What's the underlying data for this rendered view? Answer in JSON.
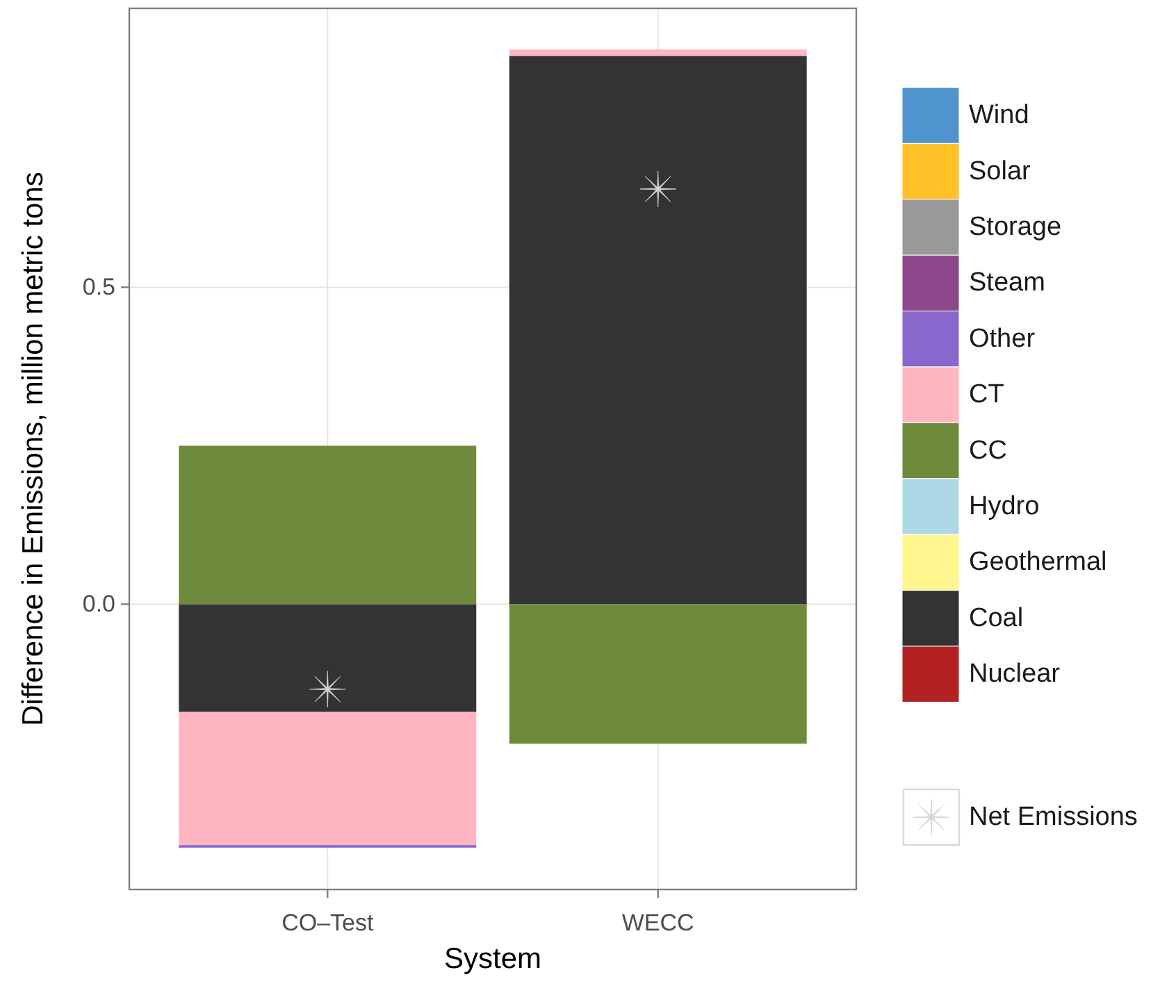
{
  "chart_data": {
    "type": "bar",
    "stacked": true,
    "xlabel": "System",
    "ylabel": "Difference in Emissions, million metric tons",
    "categories": [
      "CO–Test",
      "WECC"
    ],
    "ylim": [
      -0.45,
      0.94
    ],
    "yticks": [
      {
        "value": 0,
        "label": "0.0"
      },
      0.5
    ],
    "grid": true,
    "legend": "right",
    "series": [
      {
        "name": "Nuclear",
        "color": "#b22222",
        "values": [
          null,
          null
        ]
      },
      {
        "name": "Coal",
        "color": "#333333",
        "values": [
          -0.17,
          0.865
        ]
      },
      {
        "name": "Geothermal",
        "color": "#fff68f",
        "values": [
          null,
          null
        ]
      },
      {
        "name": "Hydro",
        "color": "#add8e6",
        "values": [
          null,
          null
        ]
      },
      {
        "name": "CC",
        "color": "#6e8b3d",
        "values": [
          0.25,
          -0.22
        ]
      },
      {
        "name": "CT",
        "color": "#ffb6c1",
        "values": [
          -0.21,
          0.01
        ]
      },
      {
        "name": "Other",
        "color": "#8968cd",
        "values": [
          -0.004,
          null
        ]
      },
      {
        "name": "Steam",
        "color": "#8b4789",
        "values": [
          null,
          null
        ]
      },
      {
        "name": "Storage",
        "color": "#999999",
        "values": [
          null,
          null
        ]
      },
      {
        "name": "Solar",
        "color": "#ffc125",
        "values": [
          null,
          null
        ]
      },
      {
        "name": "Wind",
        "color": "#4f94cd",
        "values": [
          null,
          null
        ]
      },
      {
        "name": "Net Emissions",
        "type": "scatter",
        "marker": "star",
        "color": "#d3d3d3",
        "x": [
          "CO–Test",
          "WECC"
        ],
        "values": [
          -0.134,
          0.655
        ]
      }
    ]
  }
}
